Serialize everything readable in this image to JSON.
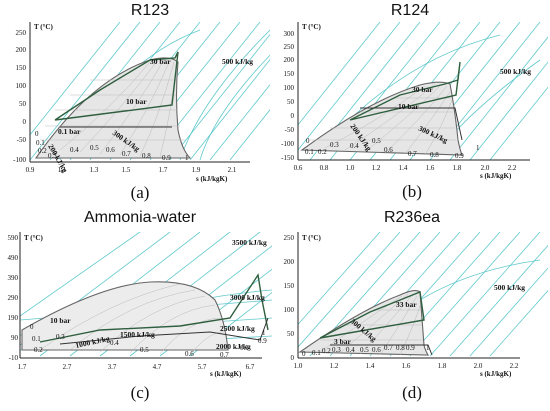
{
  "panels": [
    {
      "id": "a",
      "title": "R123",
      "caption": "(a)",
      "y_axis_label": "T (°C)",
      "x_axis_label": "s (kJ/kgK)",
      "y_ticks": [
        "250",
        "200",
        "150",
        "100",
        "50",
        "0",
        "-50",
        "-100"
      ],
      "x_ticks": [
        "0.9",
        "1.1",
        "1.3",
        "1.5",
        "1.7",
        "1.9",
        "2.1"
      ],
      "labels": {
        "p_high": "30 bar",
        "p_mid": "10 bar",
        "p_low": "0.1 bar",
        "h_low": "200 kJ/kg",
        "h_mid": "300 kJ/kg",
        "h_high": "500 kJ/kg",
        "q_values": [
          "0",
          "0.1",
          "0.2",
          "0.3",
          "0.4",
          "0.5",
          "0.6",
          "0.7",
          "0.8",
          "0.9",
          "1"
        ]
      }
    },
    {
      "id": "b",
      "title": "R124",
      "caption": "(b)",
      "y_axis_label": "T (°C)",
      "x_axis_label": "s (kJ/kgK)",
      "y_ticks": [
        "300",
        "250",
        "200",
        "150",
        "100",
        "50",
        "0",
        "-50",
        "-100",
        "-150"
      ],
      "x_ticks": [
        "0.6",
        "0.8",
        "1.0",
        "1.2",
        "1.4",
        "1.6",
        "1.8",
        "2.0",
        "2.2"
      ],
      "labels": {
        "p_high": "30 bar",
        "p_mid": "10 bar",
        "h_low": "200 kJ/kg",
        "h_mid": "300 kJ/kg",
        "h_high": "500 kJ/kg",
        "q_values": [
          "0",
          "0.1",
          "0.2",
          "0.3",
          "0.4",
          "0.5",
          "0.6",
          "0.7",
          "0.8",
          "0.9",
          "1"
        ]
      }
    },
    {
      "id": "c",
      "title": "Ammonia-water",
      "caption": "(c)",
      "y_axis_label": "T (°C)",
      "x_axis_label": "s (kJ/kgK)",
      "y_ticks": [
        "590",
        "490",
        "390",
        "290",
        "190",
        "90",
        "-10"
      ],
      "x_ticks": [
        "1.7",
        "2.7",
        "3.7",
        "4.7",
        "5.7",
        "6.7"
      ],
      "labels": {
        "p_high": "10 bar",
        "h_top": "3500 kJ/kg",
        "h_3000": "3000 kJ/kg",
        "h_2500": "2500 kJ/kg",
        "h_2000": "2000 kJ/kg",
        "h_1500": "1500 kJ/kg",
        "h_1000": "1000 kJ/kg",
        "q_values": [
          "0",
          "0.1",
          "0.2",
          "0.3",
          "0.4",
          "0.5",
          "0.6",
          "0.7",
          "0.8",
          "0.9",
          "1"
        ]
      }
    },
    {
      "id": "d",
      "title": "R236ea",
      "caption": "(d)",
      "y_axis_label": "T (°C)",
      "x_axis_label": "s (kJ/kgK)",
      "y_ticks": [
        "250",
        "200",
        "150",
        "100",
        "50",
        "0"
      ],
      "x_ticks": [
        "1.0",
        "1.2",
        "1.4",
        "1.6",
        "1.8",
        "2.0",
        "2.2"
      ],
      "labels": {
        "p_high": "33 bar",
        "p_low": "3 bar",
        "h_low": "300 kJ/kg",
        "h_high": "500 kJ/kg",
        "q_values": [
          "0",
          "0.1",
          "0.2",
          "0.3",
          "0.4",
          "0.5",
          "0.6",
          "0.7",
          "0.8",
          "0.9",
          "1"
        ]
      }
    }
  ]
}
